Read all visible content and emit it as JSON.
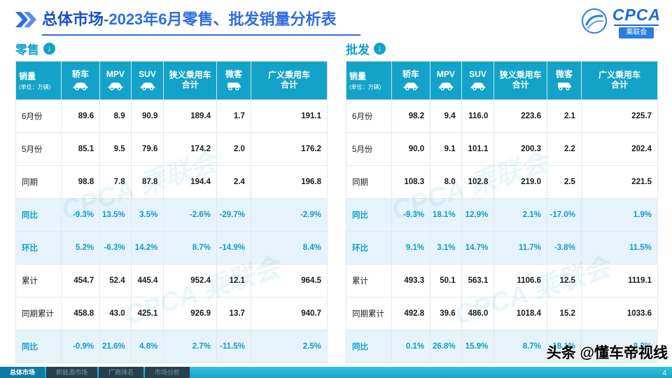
{
  "title": {
    "highlight": "总体市场",
    "rest": "-2023年6月零售、批发销量分析表"
  },
  "logo": {
    "brand": "CPCA",
    "badge": "乘联会"
  },
  "icons": {
    "download_glyph": "↓",
    "chevrons": "double-right-chevron"
  },
  "tables": [
    {
      "label": "零售",
      "unit": {
        "line1": "销量",
        "line2": "(单位：万辆)"
      },
      "columns": [
        {
          "lines": [
            "轿车"
          ],
          "icon": "sedan-icon"
        },
        {
          "lines": [
            "MPV"
          ],
          "icon": "mpv-icon"
        },
        {
          "lines": [
            "SUV"
          ],
          "icon": "suv-icon"
        },
        {
          "lines": [
            "狭义乘用车",
            "合计"
          ],
          "icon": null
        },
        {
          "lines": [
            "微客"
          ],
          "icon": "van-icon"
        },
        {
          "lines": [
            "广义乘用车",
            "合计"
          ],
          "icon": null
        }
      ],
      "rows": [
        {
          "label": "6月份",
          "values": [
            "89.6",
            "8.9",
            "90.9",
            "189.4",
            "1.7",
            "191.1"
          ],
          "highlight": false
        },
        {
          "label": "5月份",
          "values": [
            "85.1",
            "9.5",
            "79.6",
            "174.2",
            "2.0",
            "176.2"
          ],
          "highlight": false
        },
        {
          "label": "同期",
          "values": [
            "98.8",
            "7.8",
            "87.8",
            "194.4",
            "2.4",
            "196.8"
          ],
          "highlight": false
        },
        {
          "label": "同比",
          "values": [
            "-9.3%",
            "13.5%",
            "3.5%",
            "-2.6%",
            "-29.7%",
            "-2.9%"
          ],
          "highlight": true
        },
        {
          "label": "环比",
          "values": [
            "5.2%",
            "-6.3%",
            "14.2%",
            "8.7%",
            "-14.9%",
            "8.4%"
          ],
          "highlight": true
        },
        {
          "label": "累计",
          "values": [
            "454.7",
            "52.4",
            "445.4",
            "952.4",
            "12.1",
            "964.5"
          ],
          "highlight": false
        },
        {
          "label": "同期累计",
          "values": [
            "458.8",
            "43.0",
            "425.1",
            "926.9",
            "13.7",
            "940.7"
          ],
          "highlight": false
        },
        {
          "label": "同比",
          "values": [
            "-0.9%",
            "21.6%",
            "4.8%",
            "2.7%",
            "-11.5%",
            "2.5%"
          ],
          "highlight": true
        }
      ]
    },
    {
      "label": "批发",
      "unit": {
        "line1": "销量",
        "line2": "(单位：万辆)"
      },
      "columns": [
        {
          "lines": [
            "轿车"
          ],
          "icon": "sedan-icon"
        },
        {
          "lines": [
            "MPV"
          ],
          "icon": "mpv-icon"
        },
        {
          "lines": [
            "SUV"
          ],
          "icon": "suv-icon"
        },
        {
          "lines": [
            "狭义乘用车",
            "合计"
          ],
          "icon": null
        },
        {
          "lines": [
            "微客"
          ],
          "icon": "van-icon"
        },
        {
          "lines": [
            "广义乘用车",
            "合计"
          ],
          "icon": null
        }
      ],
      "rows": [
        {
          "label": "6月份",
          "values": [
            "98.2",
            "9.4",
            "116.0",
            "223.6",
            "2.1",
            "225.7"
          ],
          "highlight": false
        },
        {
          "label": "5月份",
          "values": [
            "90.0",
            "9.1",
            "101.1",
            "200.3",
            "2.2",
            "202.4"
          ],
          "highlight": false
        },
        {
          "label": "同期",
          "values": [
            "108.3",
            "8.0",
            "102.8",
            "219.0",
            "2.5",
            "221.5"
          ],
          "highlight": false
        },
        {
          "label": "同比",
          "values": [
            "-9.3%",
            "18.1%",
            "12.9%",
            "2.1%",
            "-17.0%",
            "1.9%"
          ],
          "highlight": true
        },
        {
          "label": "环比",
          "values": [
            "9.1%",
            "3.1%",
            "14.7%",
            "11.7%",
            "-3.8%",
            "11.5%"
          ],
          "highlight": true
        },
        {
          "label": "累计",
          "values": [
            "493.3",
            "50.1",
            "563.1",
            "1106.6",
            "12.5",
            "1119.1"
          ],
          "highlight": false
        },
        {
          "label": "同期累计",
          "values": [
            "492.8",
            "39.6",
            "486.0",
            "1018.4",
            "15.2",
            "1033.6"
          ],
          "highlight": false
        },
        {
          "label": "同比",
          "values": [
            "0.1%",
            "26.8%",
            "15.9%",
            "8.7%",
            "-18.1%",
            "8.3%"
          ],
          "highlight": true
        }
      ]
    }
  ],
  "footer": {
    "tabs": [
      {
        "label": "总体市场",
        "active": true
      },
      {
        "label": "新能源市场",
        "active": false
      },
      {
        "label": "厂商排名",
        "active": false
      },
      {
        "label": "市场分析",
        "active": false
      }
    ],
    "page": "4"
  },
  "social_watermark": "头条 @懂车帝视线",
  "diagonal_watermark": "CPCA 乘联会",
  "colors": {
    "accent_teal": "#14a3c8",
    "accent_blue": "#2e6de2",
    "highlight_bg": "#e7f3fa",
    "highlight_text": "#0f9dc8"
  }
}
